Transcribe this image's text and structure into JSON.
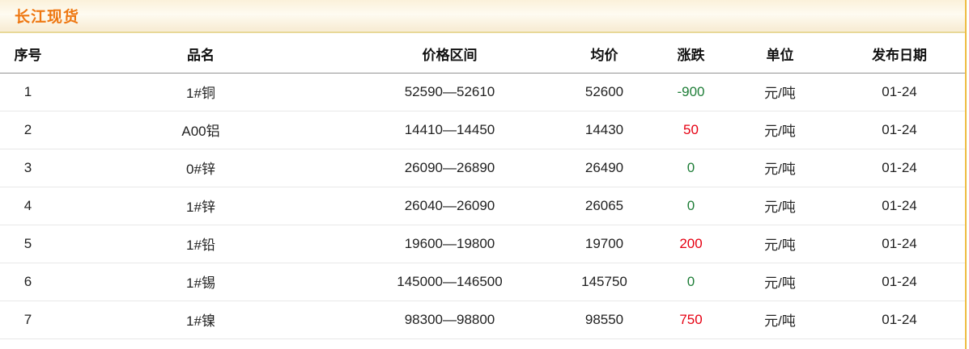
{
  "title": "长江现货",
  "colors": {
    "up": "#e60012",
    "down": "#1f7e38",
    "title_text": "#ee7711",
    "gold_divider": "#eebc41"
  },
  "table": {
    "columns": [
      {
        "key": "index",
        "label": "序号"
      },
      {
        "key": "name",
        "label": "品名"
      },
      {
        "key": "range",
        "label": "价格区间"
      },
      {
        "key": "avg",
        "label": "均价"
      },
      {
        "key": "change",
        "label": "涨跌"
      },
      {
        "key": "unit",
        "label": "单位"
      },
      {
        "key": "date",
        "label": "发布日期"
      }
    ],
    "rows": [
      {
        "index": "1",
        "name": "1#铜",
        "range": "52590—52610",
        "avg": "52600",
        "change": "-900",
        "change_dir": "down",
        "unit": "元/吨",
        "date": "01-24"
      },
      {
        "index": "2",
        "name": "A00铝",
        "range": "14410—14450",
        "avg": "14430",
        "change": "50",
        "change_dir": "up",
        "unit": "元/吨",
        "date": "01-24"
      },
      {
        "index": "3",
        "name": "0#锌",
        "range": "26090—26890",
        "avg": "26490",
        "change": "0",
        "change_dir": "down",
        "unit": "元/吨",
        "date": "01-24"
      },
      {
        "index": "4",
        "name": "1#锌",
        "range": "26040—26090",
        "avg": "26065",
        "change": "0",
        "change_dir": "down",
        "unit": "元/吨",
        "date": "01-24"
      },
      {
        "index": "5",
        "name": "1#铅",
        "range": "19600—19800",
        "avg": "19700",
        "change": "200",
        "change_dir": "up",
        "unit": "元/吨",
        "date": "01-24"
      },
      {
        "index": "6",
        "name": "1#锡",
        "range": "145000—146500",
        "avg": "145750",
        "change": "0",
        "change_dir": "down",
        "unit": "元/吨",
        "date": "01-24"
      },
      {
        "index": "7",
        "name": "1#镍",
        "range": "98300—98800",
        "avg": "98550",
        "change": "750",
        "change_dir": "up",
        "unit": "元/吨",
        "date": "01-24"
      }
    ]
  }
}
